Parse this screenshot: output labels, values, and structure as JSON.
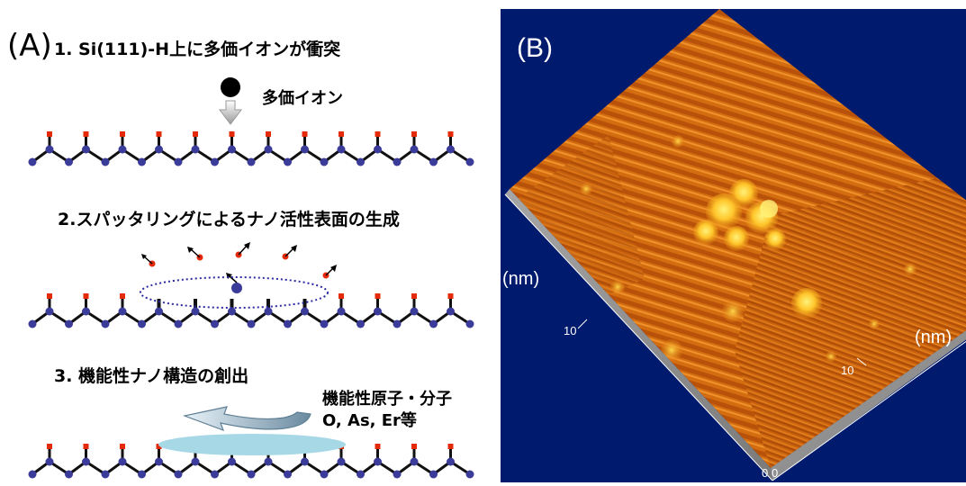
{
  "panel_a": {
    "label": "(A)",
    "step1": "1. Si(111)-H上に多価イオンが衝突",
    "ion_label": "多価イオン",
    "step2": "2.スパッタリングによるナノ活性表面の生成",
    "step3": "3. 機能性ナノ構造の創出",
    "functional_label_1": "機能性原子・分子",
    "functional_label_2": "O, As, Er等"
  },
  "panel_b": {
    "label": "(B)",
    "axis_unit_left": "(nm)",
    "axis_unit_right": "(nm)",
    "tick_10_left": "10",
    "tick_10_right": "10",
    "tick_0_left": "0",
    "tick_0_right": "0"
  },
  "colors": {
    "si_atom": "#3b3b9a",
    "h_atom": "#e52a0a",
    "bond": "#111111",
    "stm_orange": "#d8700f",
    "stm_background": "#001a6e"
  }
}
